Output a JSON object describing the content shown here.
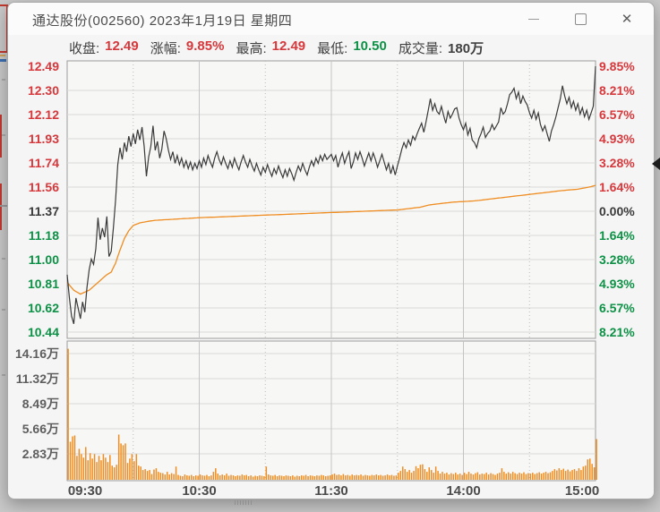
{
  "window": {
    "title": "通达股份(002560)  2023年1月19日  星期四",
    "controls": [
      "minimize",
      "maximize",
      "close"
    ]
  },
  "info_bar": [
    {
      "label": "收盘:",
      "value": "12.49",
      "tone": "red"
    },
    {
      "label": "涨幅:",
      "value": "9.85%",
      "tone": "red"
    },
    {
      "label": "最高:",
      "value": "12.49",
      "tone": "red"
    },
    {
      "label": "最低:",
      "value": "10.50",
      "tone": "green"
    },
    {
      "label": "成交量:",
      "value": "180万",
      "tone": "dark"
    }
  ],
  "colors": {
    "up_red": "#d6383c",
    "down_green": "#0d9146",
    "price_line": "#3a3a3a",
    "avg_line": "#ef8d21",
    "volume_bar": "#ef8d21",
    "grid": "#d8d8d8",
    "pane_border": "#9c9c9c",
    "pane_fill": "#f7f7f6"
  },
  "chart_data": {
    "type": "line",
    "title": "通达股份(002560) 2023-01-19 intraday (time-share) chart",
    "legend_position": "none",
    "grid": true,
    "prev_close": 11.37,
    "open": 10.88,
    "close": 12.49,
    "high": 12.49,
    "low": 10.5,
    "limit_up_pct": 9.85,
    "x_axis_labels": [
      "09:30",
      "10:30",
      "11:30",
      "14:00",
      "15:00"
    ],
    "x_minutes_total": 240,
    "left_axis_prices": [
      {
        "text": "12.49",
        "tone": "red"
      },
      {
        "text": "12.30",
        "tone": "red"
      },
      {
        "text": "12.12",
        "tone": "red"
      },
      {
        "text": "11.93",
        "tone": "red"
      },
      {
        "text": "11.74",
        "tone": "red"
      },
      {
        "text": "11.56",
        "tone": "red"
      },
      {
        "text": "11.37",
        "tone": "dark"
      },
      {
        "text": "11.18",
        "tone": "green"
      },
      {
        "text": "11.00",
        "tone": "green"
      },
      {
        "text": "10.81",
        "tone": "green"
      },
      {
        "text": "10.62",
        "tone": "green"
      },
      {
        "text": "10.44",
        "tone": "green"
      }
    ],
    "right_axis_percents": [
      {
        "text": "9.85%",
        "tone": "red"
      },
      {
        "text": "8.21%",
        "tone": "red"
      },
      {
        "text": "6.57%",
        "tone": "red"
      },
      {
        "text": "4.93%",
        "tone": "red"
      },
      {
        "text": "3.28%",
        "tone": "red"
      },
      {
        "text": "1.64%",
        "tone": "red"
      },
      {
        "text": "0.00%",
        "tone": "dark"
      },
      {
        "text": "1.64%",
        "tone": "green"
      },
      {
        "text": "3.28%",
        "tone": "green"
      },
      {
        "text": "4.93%",
        "tone": "green"
      },
      {
        "text": "6.57%",
        "tone": "green"
      },
      {
        "text": "8.21%",
        "tone": "green"
      }
    ],
    "volume_axis_labels": [
      "14.16万",
      "11.32万",
      "8.49万",
      "5.66万",
      "2.83万"
    ],
    "series": [
      {
        "name": "price",
        "values": [
          10.88,
          10.7,
          10.56,
          10.5,
          10.7,
          10.62,
          10.54,
          10.67,
          10.59,
          10.78,
          10.92,
          11.0,
          10.96,
          11.08,
          11.32,
          11.15,
          11.24,
          11.17,
          11.33,
          11.02,
          11.06,
          11.24,
          11.46,
          11.73,
          11.86,
          11.77,
          11.9,
          11.83,
          11.95,
          11.87,
          11.97,
          11.89,
          12.0,
          11.92,
          12.02,
          11.87,
          11.64,
          11.79,
          11.87,
          12.03,
          11.84,
          11.91,
          11.78,
          11.85,
          11.99,
          11.93,
          11.84,
          11.77,
          11.83,
          11.74,
          11.8,
          11.73,
          11.78,
          11.71,
          11.76,
          11.7,
          11.75,
          11.69,
          11.74,
          11.7,
          11.76,
          11.71,
          11.78,
          11.73,
          11.8,
          11.75,
          11.71,
          11.78,
          11.83,
          11.77,
          11.73,
          11.79,
          11.74,
          11.7,
          11.76,
          11.71,
          11.78,
          11.73,
          11.69,
          11.75,
          11.8,
          11.75,
          11.71,
          11.77,
          11.72,
          11.68,
          11.74,
          11.69,
          11.65,
          11.71,
          11.67,
          11.73,
          11.68,
          11.64,
          11.7,
          11.66,
          11.72,
          11.67,
          11.63,
          11.69,
          11.64,
          11.7,
          11.66,
          11.61,
          11.67,
          11.72,
          11.68,
          11.74,
          11.69,
          11.65,
          11.71,
          11.76,
          11.72,
          11.78,
          11.74,
          11.8,
          11.76,
          11.81,
          11.77,
          11.79,
          11.81,
          11.76,
          11.8,
          11.71,
          11.77,
          11.82,
          11.74,
          11.79,
          11.83,
          11.7,
          11.75,
          11.82,
          11.77,
          11.83,
          11.78,
          11.72,
          11.77,
          11.82,
          11.76,
          11.82,
          11.77,
          11.71,
          11.76,
          11.81,
          11.75,
          11.69,
          11.74,
          11.66,
          11.72,
          11.65,
          11.72,
          11.78,
          11.85,
          11.9,
          11.86,
          11.92,
          11.88,
          11.95,
          11.92,
          11.97,
          12.01,
          12.05,
          11.98,
          12.06,
          12.15,
          12.24,
          12.15,
          12.2,
          12.14,
          12.12,
          12.18,
          12.11,
          12.05,
          12.14,
          12.09,
          12.12,
          12.16,
          12.17,
          12.09,
          12.04,
          12.0,
          12.05,
          11.96,
          12.01,
          11.92,
          11.9,
          11.86,
          11.93,
          11.97,
          12.02,
          11.94,
          11.97,
          11.99,
          12.04,
          12.0,
          12.03,
          12.06,
          12.17,
          12.12,
          12.14,
          12.2,
          12.27,
          12.29,
          12.32,
          12.24,
          12.29,
          12.2,
          12.26,
          12.22,
          12.19,
          12.13,
          12.09,
          12.15,
          12.08,
          12.13,
          12.04,
          11.99,
          12.03,
          11.97,
          11.91,
          11.99,
          12.04,
          12.1,
          12.17,
          12.24,
          12.34,
          12.26,
          12.2,
          12.25,
          12.17,
          12.22,
          12.15,
          12.2,
          12.12,
          12.17,
          12.1,
          12.15,
          12.08,
          12.13,
          12.18,
          12.49
        ]
      },
      {
        "name": "average_price",
        "anchors": [
          [
            0,
            10.82
          ],
          [
            3,
            10.76
          ],
          [
            6,
            10.73
          ],
          [
            10,
            10.76
          ],
          [
            14,
            10.82
          ],
          [
            18,
            10.88
          ],
          [
            20,
            10.9
          ],
          [
            22,
            10.97
          ],
          [
            24,
            11.07
          ],
          [
            26,
            11.16
          ],
          [
            28,
            11.22
          ],
          [
            30,
            11.26
          ],
          [
            33,
            11.28
          ],
          [
            36,
            11.29
          ],
          [
            40,
            11.3
          ],
          [
            50,
            11.31
          ],
          [
            60,
            11.32
          ],
          [
            75,
            11.33
          ],
          [
            90,
            11.34
          ],
          [
            105,
            11.35
          ],
          [
            120,
            11.36
          ],
          [
            135,
            11.37
          ],
          [
            150,
            11.38
          ],
          [
            160,
            11.4
          ],
          [
            165,
            11.42
          ],
          [
            175,
            11.44
          ],
          [
            185,
            11.45
          ],
          [
            195,
            11.47
          ],
          [
            205,
            11.49
          ],
          [
            215,
            11.51
          ],
          [
            225,
            11.53
          ],
          [
            232,
            11.54
          ],
          [
            238,
            11.56
          ],
          [
            240,
            11.57
          ]
        ]
      }
    ],
    "volume_wan": [
      14.8,
      4.3,
      4.9,
      5.0,
      2.7,
      3.5,
      2.9,
      2.5,
      3.7,
      2.2,
      3.0,
      2.4,
      2.9,
      2.0,
      2.7,
      2.2,
      2.9,
      2.5,
      2.0,
      2.8,
      1.6,
      1.4,
      1.7,
      5.1,
      4.1,
      3.9,
      4.1,
      1.9,
      2.4,
      2.9,
      2.1,
      2.9,
      1.6,
      1.5,
      1.1,
      1.2,
      1.0,
      1.1,
      0.65,
      1.15,
      1.3,
      0.9,
      0.8,
      0.75,
      0.6,
      0.9,
      0.6,
      0.75,
      0.65,
      1.5,
      0.55,
      0.45,
      0.4,
      0.6,
      0.5,
      0.45,
      0.55,
      0.4,
      0.5,
      0.45,
      0.6,
      0.5,
      0.45,
      0.55,
      0.4,
      0.5,
      0.9,
      1.3,
      0.7,
      0.5,
      0.6,
      0.5,
      0.7,
      0.45,
      0.55,
      0.5,
      0.4,
      0.5,
      0.45,
      0.6,
      0.5,
      0.55,
      0.4,
      0.5,
      0.35,
      0.45,
      0.4,
      0.5,
      0.45,
      0.4,
      1.5,
      0.6,
      0.5,
      0.45,
      0.55,
      0.4,
      0.5,
      0.45,
      0.4,
      0.5,
      0.45,
      0.4,
      0.5,
      0.35,
      0.45,
      0.4,
      0.5,
      0.45,
      0.55,
      0.4,
      0.5,
      0.45,
      0.4,
      0.5,
      0.45,
      0.55,
      0.5,
      0.4,
      0.45,
      0.5,
      0.6,
      0.7,
      0.55,
      0.6,
      0.5,
      0.65,
      0.5,
      0.55,
      0.45,
      0.6,
      0.5,
      0.55,
      0.5,
      0.6,
      0.45,
      0.55,
      0.5,
      0.45,
      0.55,
      0.5,
      0.6,
      0.5,
      0.55,
      0.45,
      0.5,
      0.6,
      0.5,
      0.55,
      0.45,
      0.5,
      0.8,
      1.0,
      1.5,
      1.2,
      0.9,
      1.1,
      0.8,
      1.0,
      1.54,
      1.3,
      1.7,
      1.75,
      1.2,
      0.9,
      1.4,
      1.1,
      0.8,
      1.5,
      1.0,
      0.7,
      0.9,
      0.7,
      0.8,
      0.6,
      0.75,
      0.65,
      0.8,
      0.6,
      0.7,
      0.55,
      0.8,
      0.65,
      0.9,
      0.7,
      0.6,
      0.75,
      0.85,
      0.6,
      0.7,
      0.65,
      0.8,
      0.6,
      0.75,
      0.65,
      0.55,
      0.7,
      0.8,
      1.3,
      0.9,
      0.7,
      0.85,
      0.7,
      0.9,
      0.75,
      0.65,
      0.8,
      0.7,
      0.85,
      0.65,
      0.75,
      0.7,
      0.8,
      0.65,
      0.75,
      0.85,
      0.7,
      0.8,
      0.9,
      0.75,
      0.85,
      1.0,
      1.2,
      1.05,
      1.3,
      1.1,
      1.25,
      1.0,
      1.15,
      0.95,
      1.1,
      1.2,
      1.0,
      1.3,
      1.1,
      1.5,
      1.6,
      2.3,
      2.4,
      1.8,
      1.4,
      4.6
    ]
  }
}
